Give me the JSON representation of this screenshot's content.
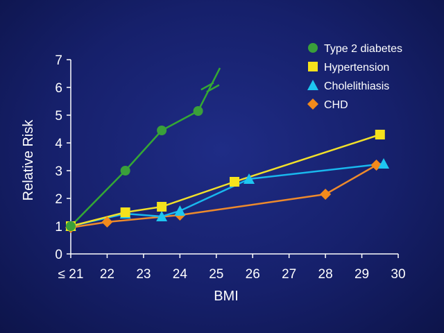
{
  "chart_data": {
    "type": "line",
    "xlabel": "BMI",
    "ylabel": "Relative Risk",
    "xlim": [
      21,
      30
    ],
    "ylim": [
      0,
      7
    ],
    "x_ticks": [
      "≤ 21",
      "22",
      "23",
      "24",
      "25",
      "26",
      "27",
      "28",
      "29",
      "30"
    ],
    "y_ticks": [
      "0",
      "1",
      "2",
      "3",
      "4",
      "5",
      "6",
      "7"
    ],
    "grid": false,
    "legend_position": "top-right",
    "break_marker_series": "Type 2 diabetes",
    "series": [
      {
        "name": "Type 2 diabetes",
        "color": "#3aa03a",
        "line_color": "#34a834",
        "marker": "circle",
        "x": [
          21,
          22.5,
          23.5,
          24.5
        ],
        "y": [
          1.0,
          3.0,
          4.45,
          5.15
        ],
        "extension": {
          "x": [
            24.5,
            25.1
          ],
          "y": [
            5.15,
            6.7
          ]
        }
      },
      {
        "name": "Hypertension",
        "color": "#f5e21c",
        "line_color": "#f1e02a",
        "marker": "square",
        "x": [
          21,
          22.5,
          23.5,
          25.5,
          29.5
        ],
        "y": [
          1.0,
          1.5,
          1.7,
          2.6,
          4.3
        ]
      },
      {
        "name": "Cholelithiasis",
        "color": "#1ec6f0",
        "line_color": "#19b8ee",
        "marker": "triangle",
        "x": [
          21,
          22.5,
          23.5,
          24,
          25.9,
          29.6
        ],
        "y": [
          1.0,
          1.45,
          1.35,
          1.55,
          2.7,
          3.25
        ]
      },
      {
        "name": "CHD",
        "color": "#f28a1c",
        "line_color": "#ee8a2c",
        "marker": "diamond",
        "x": [
          21,
          22,
          24,
          28,
          29.4
        ],
        "y": [
          0.95,
          1.15,
          1.4,
          2.15,
          3.2
        ]
      }
    ]
  }
}
